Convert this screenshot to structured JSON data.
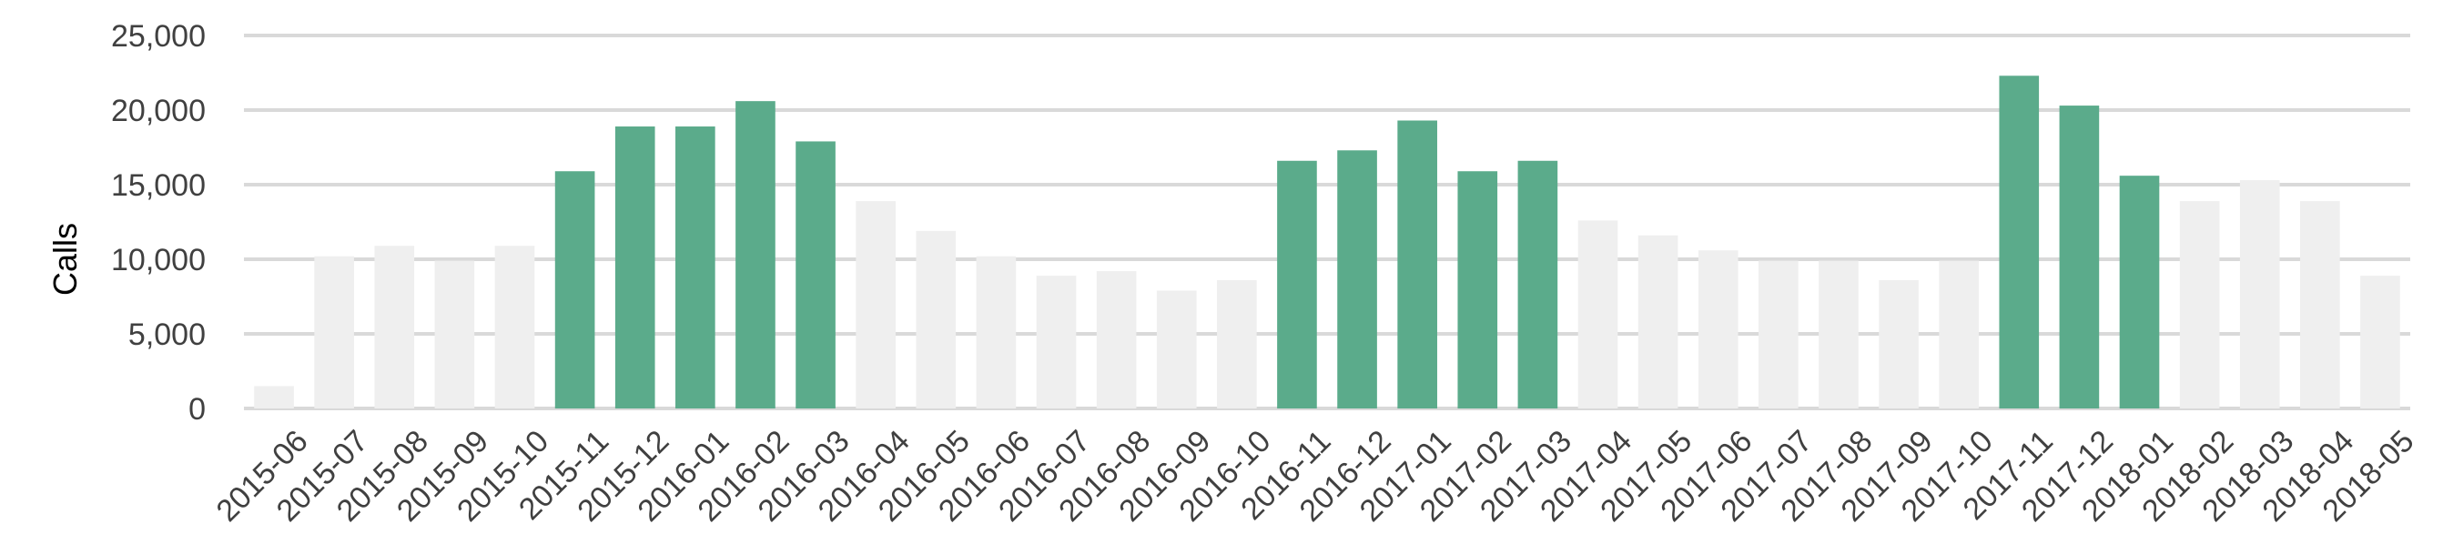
{
  "chart_data": {
    "type": "bar",
    "ylabel": "Calls",
    "xlabel": "",
    "ylim": [
      0,
      25000
    ],
    "yticks": [
      0,
      5000,
      10000,
      15000,
      20000,
      25000
    ],
    "ytick_labels": [
      "0",
      "5,000",
      "10,000",
      "15,000",
      "20,000",
      "25,000"
    ],
    "grid": true,
    "legend": "none",
    "colors": {
      "highlight": "#5bab8b",
      "normal": "#efefef",
      "grid": "#d9d9d9"
    },
    "categories": [
      "2015-06",
      "2015-07",
      "2015-08",
      "2015-09",
      "2015-10",
      "2015-11",
      "2015-12",
      "2016-01",
      "2016-02",
      "2016-03",
      "2016-04",
      "2016-05",
      "2016-06",
      "2016-07",
      "2016-08",
      "2016-09",
      "2016-10",
      "2016-11",
      "2016-12",
      "2017-01",
      "2017-02",
      "2017-03",
      "2017-04",
      "2017-05",
      "2017-06",
      "2017-07",
      "2017-08",
      "2017-09",
      "2017-10",
      "2017-11",
      "2017-12",
      "2018-01",
      "2018-02",
      "2018-03",
      "2018-04",
      "2018-05"
    ],
    "values": [
      1500,
      10200,
      10900,
      9900,
      10900,
      15900,
      18900,
      18900,
      20600,
      17900,
      13900,
      11900,
      10200,
      8900,
      9200,
      7900,
      8600,
      16600,
      17300,
      19300,
      15900,
      16600,
      12600,
      11600,
      10600,
      9900,
      9900,
      8600,
      9900,
      22300,
      20300,
      15600,
      13900,
      15300,
      13900,
      8900
    ],
    "highlighted": [
      false,
      false,
      false,
      false,
      false,
      true,
      true,
      true,
      true,
      true,
      false,
      false,
      false,
      false,
      false,
      false,
      false,
      true,
      true,
      true,
      true,
      true,
      false,
      false,
      false,
      false,
      false,
      false,
      false,
      true,
      true,
      true,
      false,
      false,
      false,
      false
    ]
  }
}
